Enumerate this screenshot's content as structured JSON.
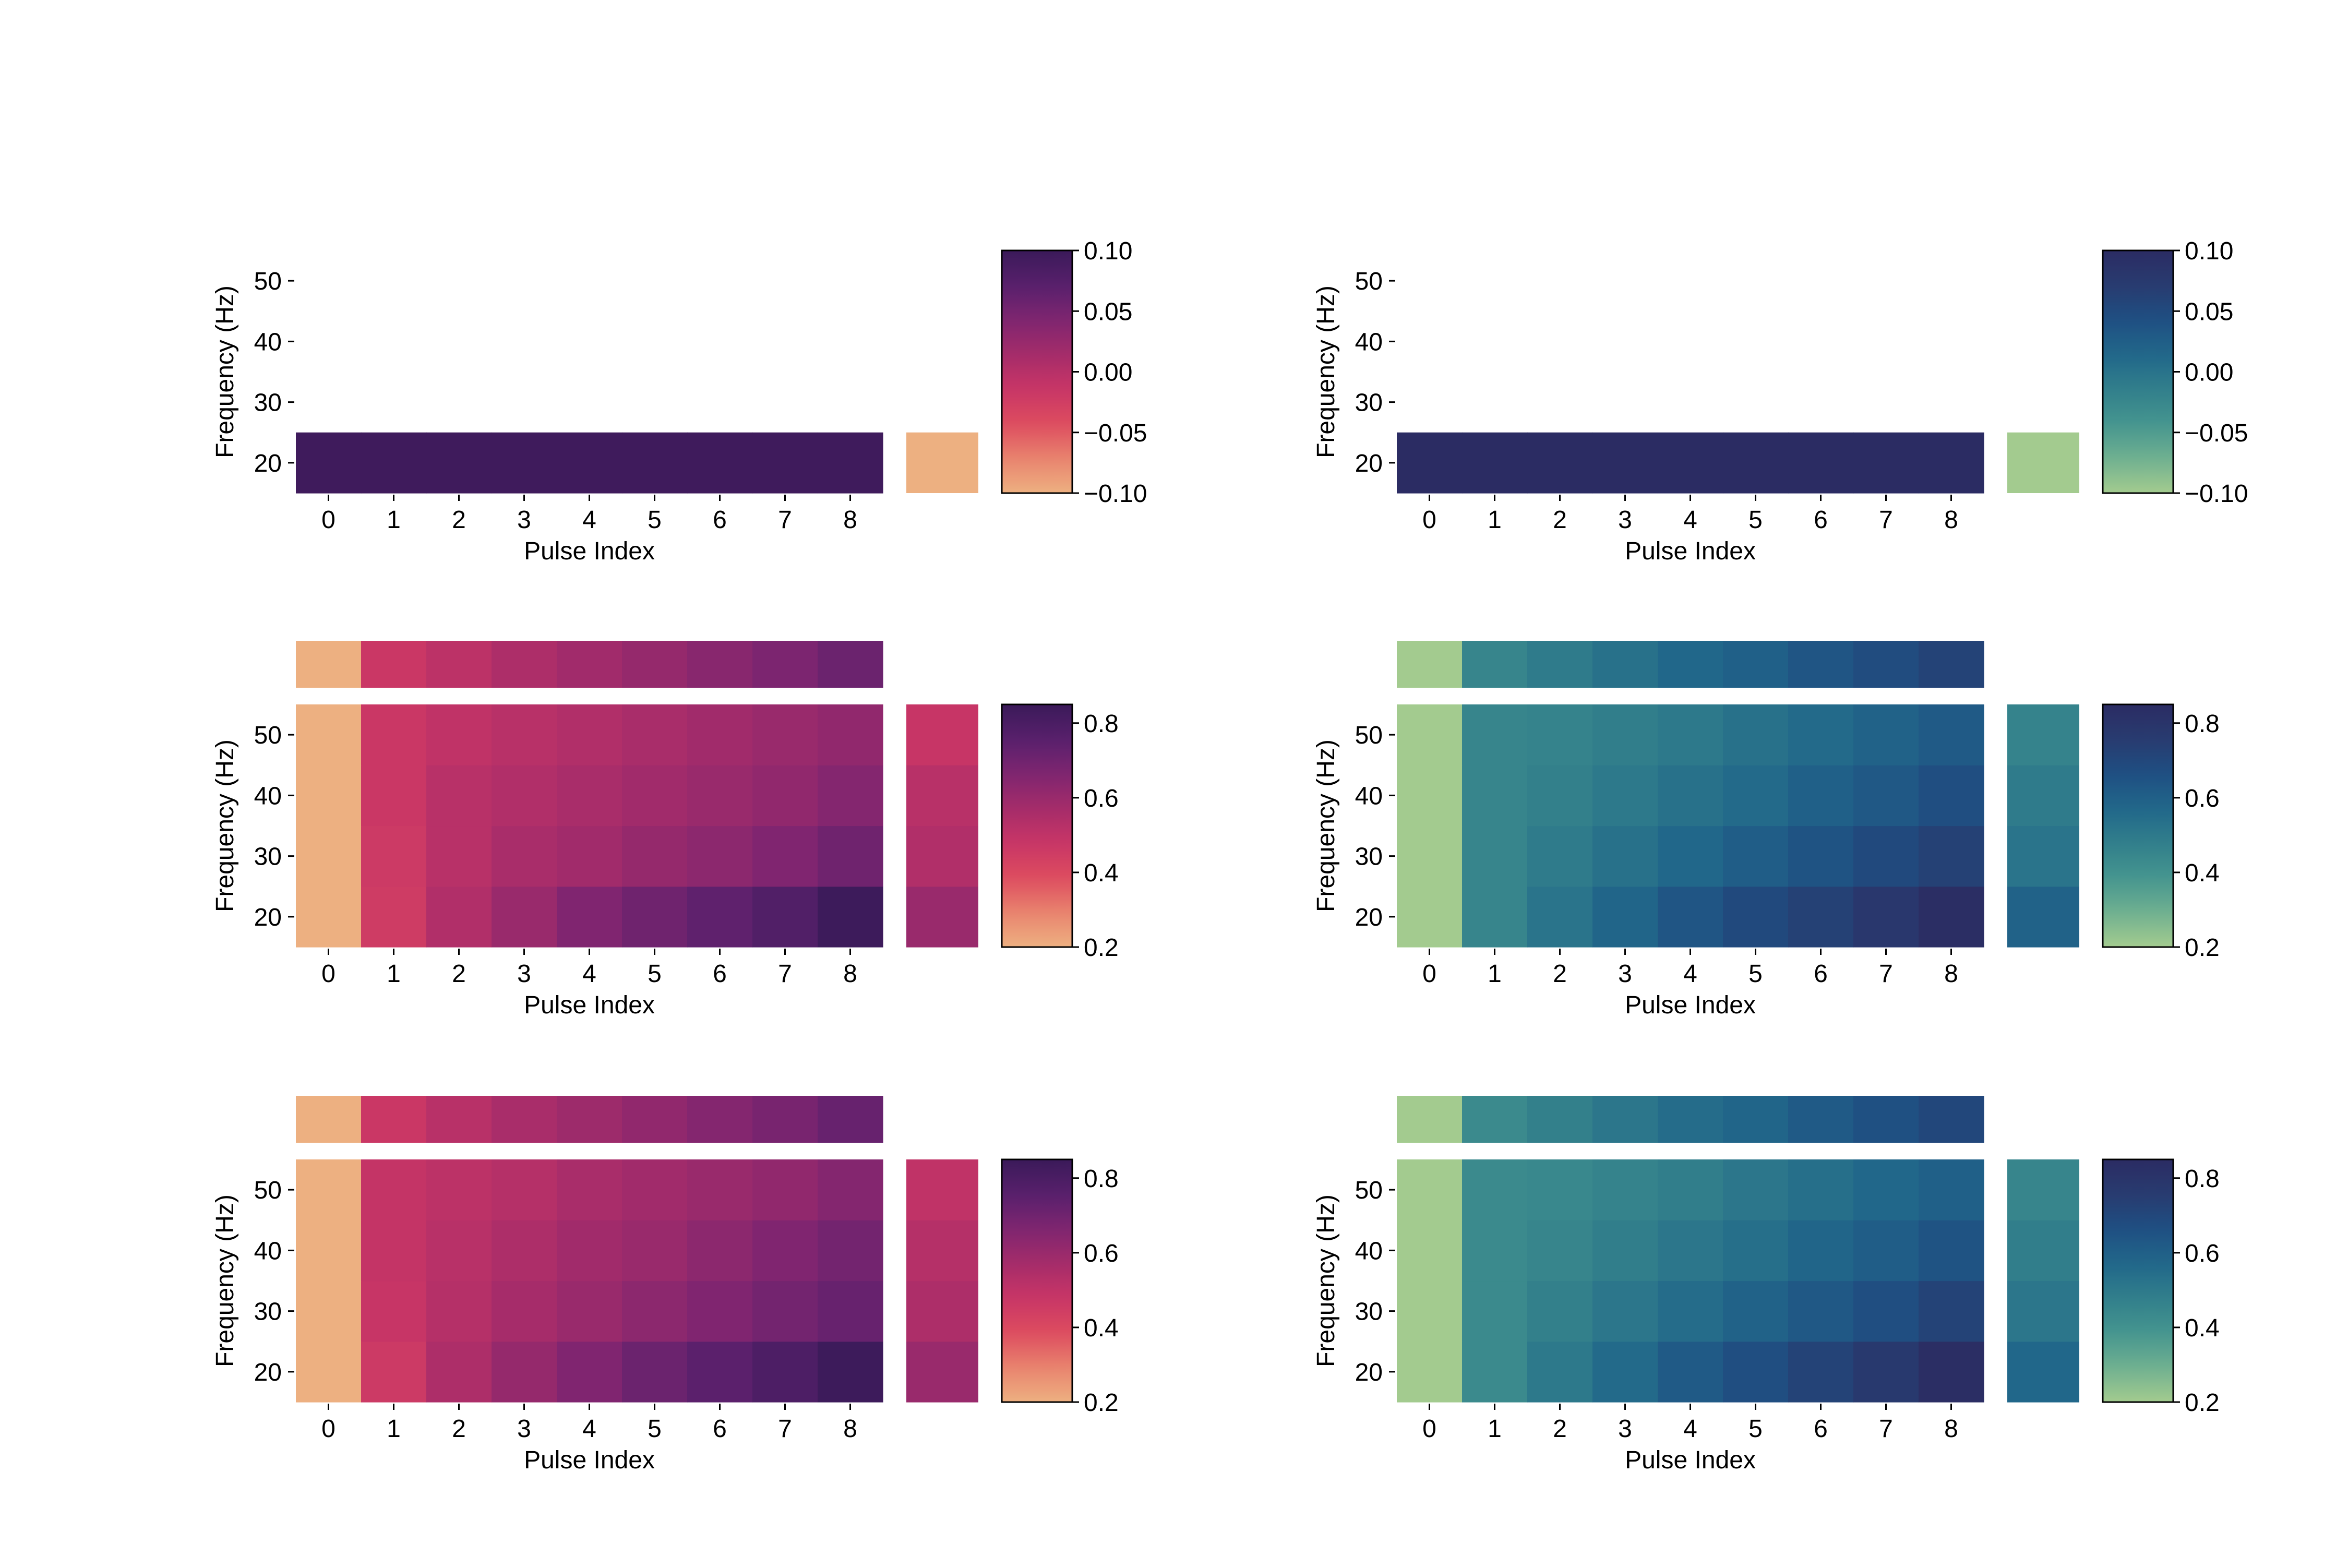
{
  "chart_data": [
    {
      "type": "heatmap",
      "colormap": "magma-like",
      "xlabel": "Pulse Index",
      "ylabel": "Frequency (Hz)",
      "x_ticks": [
        0,
        1,
        2,
        3,
        4,
        5,
        6,
        7,
        8
      ],
      "y_ticks": [
        20,
        30,
        40,
        50
      ],
      "frequencies_shown": [
        20
      ],
      "main_values": [
        [
          0.095,
          0.095,
          0.095,
          0.095,
          0.095,
          0.095,
          0.095,
          0.095,
          0.095
        ]
      ],
      "top_marginal": null,
      "right_marginal": [
        -0.1
      ],
      "colorbar": {
        "min": -0.1,
        "max": 0.1,
        "ticks": [
          "0.10",
          "0.05",
          "0.00",
          "−0.05",
          "−0.10"
        ]
      }
    },
    {
      "type": "heatmap",
      "colormap": "crest-like",
      "xlabel": "Pulse Index",
      "ylabel": "Frequency (Hz)",
      "x_ticks": [
        0,
        1,
        2,
        3,
        4,
        5,
        6,
        7,
        8
      ],
      "y_ticks": [
        20,
        30,
        40,
        50
      ],
      "frequencies_shown": [
        20
      ],
      "main_values": [
        [
          0.1,
          0.1,
          0.1,
          0.1,
          0.1,
          0.1,
          0.1,
          0.1,
          0.1
        ]
      ],
      "top_marginal": null,
      "right_marginal": [
        -0.1
      ],
      "colorbar": {
        "min": -0.1,
        "max": 0.1,
        "ticks": [
          "0.10",
          "0.05",
          "0.00",
          "−0.05",
          "−0.10"
        ]
      }
    },
    {
      "type": "heatmap",
      "colormap": "magma-like",
      "xlabel": "Pulse Index",
      "ylabel": "Frequency (Hz)",
      "x_ticks": [
        0,
        1,
        2,
        3,
        4,
        5,
        6,
        7,
        8
      ],
      "y_ticks": [
        20,
        30,
        40,
        50
      ],
      "frequencies_shown": [
        20,
        30,
        40,
        50
      ],
      "main_values": [
        [
          0.2,
          0.45,
          0.54,
          0.6,
          0.66,
          0.7,
          0.74,
          0.78,
          0.84
        ],
        [
          0.2,
          0.46,
          0.52,
          0.56,
          0.58,
          0.61,
          0.63,
          0.66,
          0.7
        ],
        [
          0.2,
          0.47,
          0.52,
          0.54,
          0.56,
          0.58,
          0.6,
          0.62,
          0.65
        ],
        [
          0.2,
          0.47,
          0.5,
          0.52,
          0.54,
          0.56,
          0.58,
          0.6,
          0.62
        ]
      ],
      "top_marginal": [
        0.2,
        0.47,
        0.51,
        0.55,
        0.58,
        0.61,
        0.64,
        0.67,
        0.71
      ],
      "right_marginal": [
        0.6,
        0.54,
        0.52,
        0.48
      ],
      "colorbar": {
        "min": 0.2,
        "max": 0.85,
        "ticks": [
          "0.8",
          "0.6",
          "0.4",
          "0.2"
        ]
      }
    },
    {
      "type": "heatmap",
      "colormap": "crest-like",
      "xlabel": "Pulse Index",
      "ylabel": "Frequency (Hz)",
      "x_ticks": [
        0,
        1,
        2,
        3,
        4,
        5,
        6,
        7,
        8
      ],
      "y_ticks": [
        20,
        30,
        40,
        50
      ],
      "frequencies_shown": [
        20,
        30,
        40,
        50
      ],
      "main_values": [
        [
          0.2,
          0.45,
          0.52,
          0.58,
          0.64,
          0.69,
          0.73,
          0.78,
          0.84
        ],
        [
          0.2,
          0.45,
          0.49,
          0.53,
          0.57,
          0.61,
          0.65,
          0.69,
          0.73
        ],
        [
          0.2,
          0.45,
          0.47,
          0.5,
          0.53,
          0.56,
          0.6,
          0.63,
          0.67
        ],
        [
          0.2,
          0.45,
          0.46,
          0.48,
          0.5,
          0.53,
          0.56,
          0.59,
          0.62
        ]
      ],
      "top_marginal": [
        0.2,
        0.45,
        0.49,
        0.53,
        0.57,
        0.6,
        0.64,
        0.68,
        0.72
      ],
      "right_marginal": [
        0.59,
        0.52,
        0.49,
        0.46
      ],
      "colorbar": {
        "min": 0.2,
        "max": 0.85,
        "ticks": [
          "0.8",
          "0.6",
          "0.4",
          "0.2"
        ]
      }
    },
    {
      "type": "heatmap",
      "colormap": "magma-like",
      "xlabel": "Pulse Index",
      "ylabel": "Frequency (Hz)",
      "x_ticks": [
        0,
        1,
        2,
        3,
        4,
        5,
        6,
        7,
        8
      ],
      "y_ticks": [
        20,
        30,
        40,
        50
      ],
      "frequencies_shown": [
        20,
        30,
        40,
        50
      ],
      "main_values": [
        [
          0.2,
          0.46,
          0.55,
          0.61,
          0.66,
          0.71,
          0.75,
          0.79,
          0.84
        ],
        [
          0.2,
          0.48,
          0.53,
          0.57,
          0.6,
          0.63,
          0.66,
          0.69,
          0.72
        ],
        [
          0.2,
          0.49,
          0.52,
          0.55,
          0.58,
          0.6,
          0.63,
          0.66,
          0.69
        ],
        [
          0.2,
          0.49,
          0.51,
          0.53,
          0.56,
          0.58,
          0.6,
          0.62,
          0.65
        ]
      ],
      "top_marginal": [
        0.2,
        0.47,
        0.52,
        0.56,
        0.59,
        0.62,
        0.65,
        0.68,
        0.72
      ],
      "right_marginal": [
        0.6,
        0.55,
        0.53,
        0.5
      ],
      "colorbar": {
        "min": 0.2,
        "max": 0.85,
        "ticks": [
          "0.8",
          "0.6",
          "0.4",
          "0.2"
        ]
      }
    },
    {
      "type": "heatmap",
      "colormap": "crest-like",
      "xlabel": "Pulse Index",
      "ylabel": "Frequency (Hz)",
      "x_ticks": [
        0,
        1,
        2,
        3,
        4,
        5,
        6,
        7,
        8
      ],
      "y_ticks": [
        20,
        30,
        40,
        50
      ],
      "frequencies_shown": [
        20,
        30,
        40,
        50
      ],
      "main_values": [
        [
          0.2,
          0.43,
          0.5,
          0.56,
          0.62,
          0.67,
          0.72,
          0.77,
          0.84
        ],
        [
          0.2,
          0.43,
          0.47,
          0.51,
          0.55,
          0.59,
          0.63,
          0.67,
          0.72
        ],
        [
          0.2,
          0.43,
          0.45,
          0.48,
          0.51,
          0.54,
          0.58,
          0.61,
          0.65
        ],
        [
          0.2,
          0.43,
          0.44,
          0.46,
          0.48,
          0.51,
          0.54,
          0.57,
          0.6
        ]
      ],
      "top_marginal": [
        0.2,
        0.43,
        0.47,
        0.51,
        0.55,
        0.58,
        0.62,
        0.66,
        0.7
      ],
      "right_marginal": [
        0.57,
        0.51,
        0.48,
        0.45
      ],
      "colorbar": {
        "min": 0.2,
        "max": 0.85,
        "ticks": [
          "0.8",
          "0.6",
          "0.4",
          "0.2"
        ]
      }
    }
  ]
}
